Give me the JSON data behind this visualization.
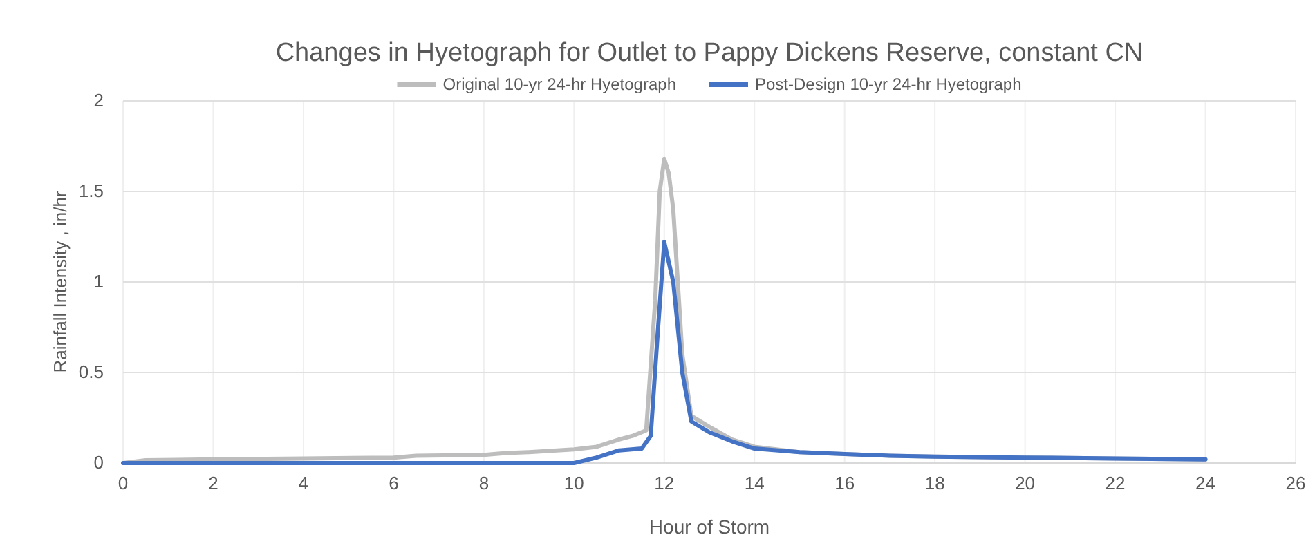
{
  "chart_data": {
    "type": "line",
    "title": "Changes in Hyetograph for Outlet to Pappy Dickens Reserve, constant CN",
    "xlabel": "Hour of Storm",
    "ylabel": "Rainfall Intensity , in/hr",
    "xlim": [
      0,
      26
    ],
    "xticks": [
      0,
      2,
      4,
      6,
      8,
      10,
      12,
      14,
      16,
      18,
      20,
      22,
      24,
      26
    ],
    "ylim": [
      0,
      2
    ],
    "yticks": [
      0,
      0.5,
      1,
      1.5,
      2
    ],
    "grid": true,
    "legend": "top",
    "marker": "none",
    "line_style": "solid",
    "series": [
      {
        "name": "Original 10-yr 24-hr Hyetograph",
        "color": "#bdbdbd",
        "x": [
          0,
          0.5,
          2,
          4,
          6,
          6.5,
          8,
          8.5,
          9,
          10,
          10.5,
          11,
          11.3,
          11.6,
          11.8,
          11.9,
          12,
          12.1,
          12.2,
          12.4,
          12.6,
          13,
          13.5,
          14,
          15,
          16,
          17,
          18,
          20,
          22,
          24
        ],
        "values": [
          0,
          0.015,
          0.02,
          0.025,
          0.03,
          0.04,
          0.045,
          0.055,
          0.06,
          0.075,
          0.09,
          0.13,
          0.15,
          0.18,
          0.9,
          1.5,
          1.68,
          1.6,
          1.4,
          0.6,
          0.26,
          0.2,
          0.13,
          0.09,
          0.06,
          0.05,
          0.04,
          0.035,
          0.03,
          0.025,
          0.02
        ]
      },
      {
        "name": "Post-Design 10-yr 24-hr Hyetograph",
        "color": "#4472c4",
        "x": [
          0,
          10,
          10.5,
          11,
          11.5,
          11.7,
          11.85,
          12,
          12.2,
          12.4,
          12.6,
          13,
          13.5,
          14,
          15,
          16,
          17,
          18,
          20,
          22,
          24
        ],
        "values": [
          0,
          0,
          0.03,
          0.07,
          0.08,
          0.15,
          0.7,
          1.22,
          1.0,
          0.5,
          0.23,
          0.17,
          0.12,
          0.08,
          0.06,
          0.05,
          0.04,
          0.035,
          0.03,
          0.025,
          0.02
        ]
      }
    ]
  }
}
